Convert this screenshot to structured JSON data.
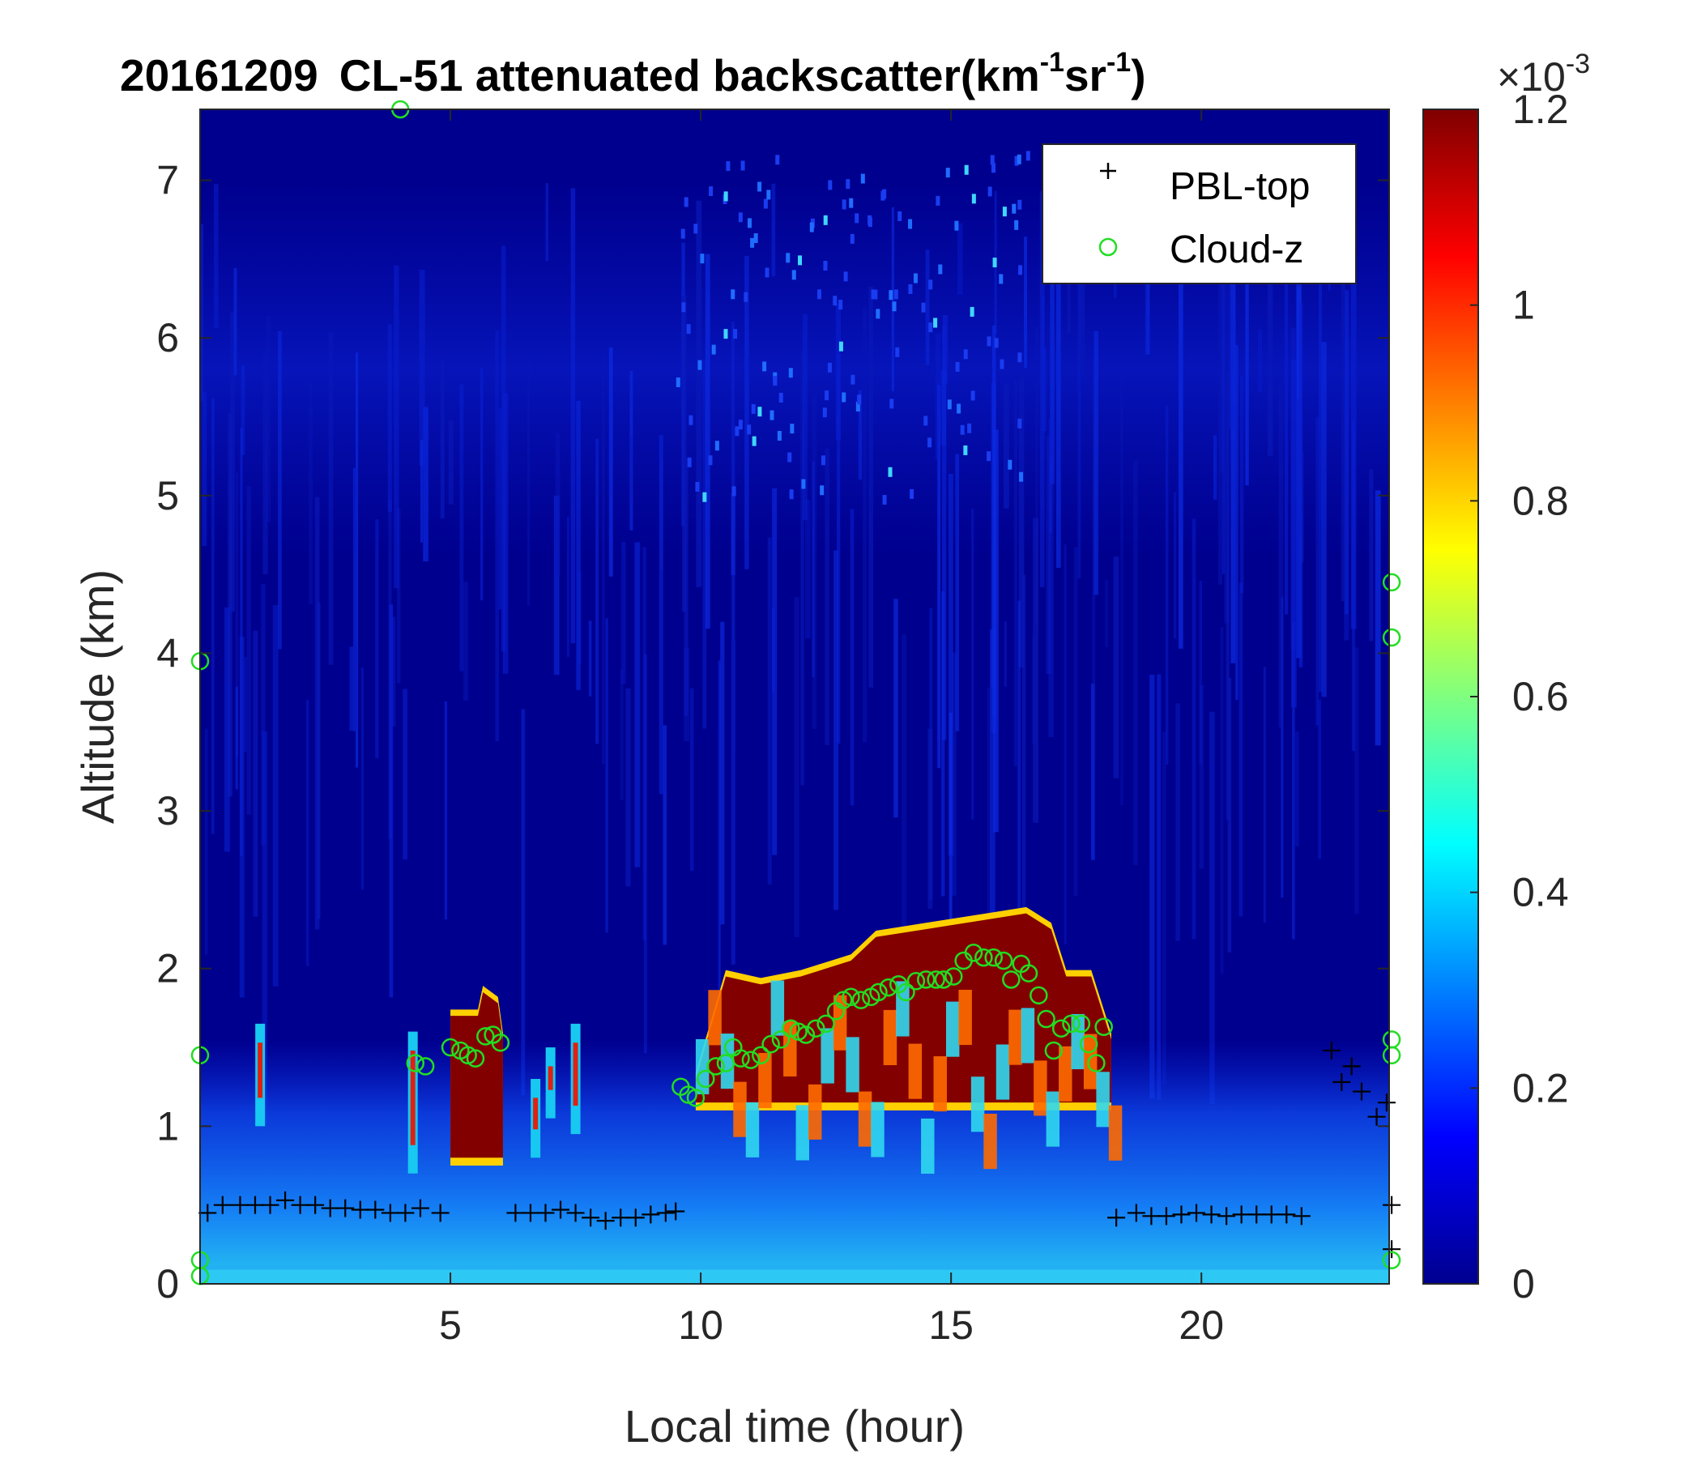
{
  "chart_data": {
    "type": "heatmap",
    "title": {
      "date": "20161209",
      "main": "CL-51 attenuated backscatter(km",
      "sup1": "-1",
      "mid": "sr",
      "sup2": "-1",
      "end": ")"
    },
    "xlabel": "Local time (hour)",
    "ylabel": "Altitude (km)",
    "xlim": [
      0,
      23.75
    ],
    "ylim": [
      0,
      7.45
    ],
    "xticks": [
      5,
      10,
      15,
      20
    ],
    "xtick_labels": [
      "5",
      "10",
      "15",
      "20"
    ],
    "yticks": [
      0,
      1,
      2,
      3,
      4,
      5,
      6,
      7
    ],
    "ytick_labels": [
      "0",
      "1",
      "2",
      "3",
      "4",
      "5",
      "6",
      "7"
    ],
    "colormap": "jet",
    "colorbar": {
      "ticks": [
        0,
        0.2,
        0.4,
        0.6,
        0.8,
        1.0,
        1.2
      ],
      "tick_labels": [
        "0",
        "0.2",
        "0.4",
        "0.6",
        "0.8",
        "1",
        "1.2"
      ],
      "multiplier_prefix": "×10",
      "multiplier_exp": "-3",
      "lim": [
        0,
        1.2
      ]
    },
    "legend": {
      "placement": "top-right",
      "entries": [
        {
          "name": "PBL-top",
          "marker": "+",
          "color": "#000000"
        },
        {
          "name": "Cloud-z",
          "marker": "o",
          "color": "#22dd22"
        }
      ]
    },
    "cloud_top_profile": [
      [
        4.3,
        1.65
      ],
      [
        5.6,
        1.7
      ],
      [
        5.75,
        1.85
      ],
      [
        6.0,
        1.7
      ],
      [
        6.2,
        1.55
      ],
      [
        9.9,
        1.3
      ],
      [
        10.5,
        1.95
      ],
      [
        11.2,
        1.9
      ],
      [
        12.0,
        1.95
      ],
      [
        13.0,
        2.05
      ],
      [
        13.5,
        2.2
      ],
      [
        14.5,
        2.25
      ],
      [
        15.5,
        2.3
      ],
      [
        16.5,
        2.35
      ],
      [
        17.0,
        2.25
      ],
      [
        17.3,
        1.95
      ],
      [
        17.8,
        1.95
      ],
      [
        18.2,
        1.55
      ]
    ],
    "series": [
      {
        "name": "PBL-top",
        "points": [
          [
            0.15,
            0.45
          ],
          [
            0.45,
            0.5
          ],
          [
            0.8,
            0.5
          ],
          [
            1.1,
            0.5
          ],
          [
            1.4,
            0.5
          ],
          [
            1.7,
            0.53
          ],
          [
            2.0,
            0.5
          ],
          [
            2.3,
            0.5
          ],
          [
            2.6,
            0.48
          ],
          [
            2.9,
            0.48
          ],
          [
            3.2,
            0.47
          ],
          [
            3.5,
            0.47
          ],
          [
            3.8,
            0.45
          ],
          [
            4.1,
            0.45
          ],
          [
            4.4,
            0.48
          ],
          [
            4.8,
            0.45
          ],
          [
            6.3,
            0.45
          ],
          [
            6.6,
            0.45
          ],
          [
            6.9,
            0.45
          ],
          [
            7.2,
            0.47
          ],
          [
            7.5,
            0.45
          ],
          [
            7.8,
            0.42
          ],
          [
            8.1,
            0.4
          ],
          [
            8.4,
            0.42
          ],
          [
            8.7,
            0.42
          ],
          [
            9.0,
            0.44
          ],
          [
            9.3,
            0.45
          ],
          [
            9.5,
            0.46
          ],
          [
            18.3,
            0.42
          ],
          [
            18.7,
            0.45
          ],
          [
            19.0,
            0.43
          ],
          [
            19.3,
            0.43
          ],
          [
            19.6,
            0.44
          ],
          [
            19.9,
            0.45
          ],
          [
            20.2,
            0.44
          ],
          [
            20.5,
            0.43
          ],
          [
            20.8,
            0.44
          ],
          [
            21.1,
            0.44
          ],
          [
            21.4,
            0.44
          ],
          [
            21.7,
            0.44
          ],
          [
            22.0,
            0.43
          ],
          [
            22.6,
            1.48
          ],
          [
            22.8,
            1.28
          ],
          [
            23.0,
            1.38
          ],
          [
            23.2,
            1.22
          ],
          [
            23.5,
            1.06
          ],
          [
            23.7,
            1.15
          ],
          [
            23.8,
            0.5
          ],
          [
            23.8,
            0.22
          ]
        ]
      },
      {
        "name": "Cloud-z",
        "points": [
          [
            0.0,
            1.45
          ],
          [
            0.0,
            3.95
          ],
          [
            0.0,
            0.15
          ],
          [
            0.0,
            0.05
          ],
          [
            4.3,
            1.4
          ],
          [
            4.5,
            1.38
          ],
          [
            4.0,
            7.45
          ],
          [
            5.0,
            1.5
          ],
          [
            5.2,
            1.48
          ],
          [
            5.35,
            1.45
          ],
          [
            5.5,
            1.43
          ],
          [
            5.7,
            1.57
          ],
          [
            5.85,
            1.58
          ],
          [
            6.0,
            1.53
          ],
          [
            9.6,
            1.25
          ],
          [
            9.75,
            1.2
          ],
          [
            9.9,
            1.18
          ],
          [
            10.1,
            1.3
          ],
          [
            10.3,
            1.38
          ],
          [
            10.5,
            1.4
          ],
          [
            10.65,
            1.5
          ],
          [
            10.8,
            1.43
          ],
          [
            11.0,
            1.42
          ],
          [
            11.2,
            1.45
          ],
          [
            11.4,
            1.52
          ],
          [
            11.6,
            1.55
          ],
          [
            11.8,
            1.62
          ],
          [
            11.95,
            1.6
          ],
          [
            12.1,
            1.58
          ],
          [
            12.3,
            1.62
          ],
          [
            12.5,
            1.65
          ],
          [
            12.7,
            1.73
          ],
          [
            12.85,
            1.8
          ],
          [
            13.0,
            1.82
          ],
          [
            13.2,
            1.8
          ],
          [
            13.4,
            1.82
          ],
          [
            13.55,
            1.85
          ],
          [
            13.75,
            1.88
          ],
          [
            13.95,
            1.9
          ],
          [
            14.1,
            1.85
          ],
          [
            14.3,
            1.92
          ],
          [
            14.5,
            1.93
          ],
          [
            14.7,
            1.93
          ],
          [
            14.85,
            1.93
          ],
          [
            15.05,
            1.95
          ],
          [
            15.25,
            2.05
          ],
          [
            15.45,
            2.1
          ],
          [
            15.65,
            2.07
          ],
          [
            15.85,
            2.07
          ],
          [
            16.05,
            2.05
          ],
          [
            16.2,
            1.93
          ],
          [
            16.4,
            2.03
          ],
          [
            16.55,
            1.97
          ],
          [
            16.75,
            1.83
          ],
          [
            16.9,
            1.68
          ],
          [
            17.05,
            1.48
          ],
          [
            17.2,
            1.62
          ],
          [
            17.4,
            1.65
          ],
          [
            17.6,
            1.65
          ],
          [
            17.75,
            1.52
          ],
          [
            17.9,
            1.4
          ],
          [
            18.05,
            1.63
          ],
          [
            23.8,
            4.45
          ],
          [
            23.8,
            4.1
          ],
          [
            23.8,
            1.55
          ],
          [
            23.8,
            1.45
          ],
          [
            23.8,
            0.15
          ]
        ]
      }
    ]
  }
}
